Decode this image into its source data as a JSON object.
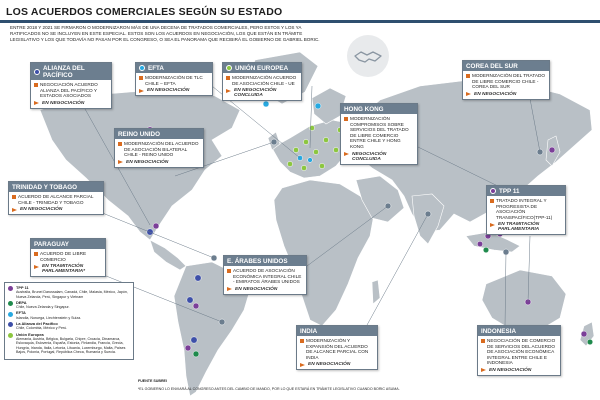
{
  "title": "LOS ACUERDOS COMERCIALES SEGÚN SU ESTADO",
  "intro": "ENTRE 2018 Y 2021 SE FIRMARON O MODERNIZARON MÁS DE UNA DECENA DE TRATADOS COMERCIALES, PERO ESTOS Y LOS YA RATIFICADOS NO SE INCLUYEN EN ESTE ESPECIAL. ESTOS SON LOS ACUERDOS EN NEGOCIACIÓN, LOS QUE ESTÁN EN TRÁMITE LEGISLATIVO Y LOS QUE TODAVÍA NO PASAN POR EL CONGRESO, O SEA EL PANORAMA QUE RECIBIRÁ EL GOBIERNO DE GABRIEL BORIC.",
  "colors": {
    "header": "#6c7e8f",
    "accent": "#d96b1f",
    "land": "#b9c0c6",
    "sea": "#ffffff",
    "rule": "#2f4f6f"
  },
  "boxes": {
    "alianza": {
      "name": "ALIANZA DEL PACÍFICO",
      "dot": "#3d4fa8",
      "text": "NEGOCIACIÓN ACUERDO ALIANZA DEL PACÍFICO Y ESTADOS ASOCIADOS",
      "status": "EN NEGOCIACIÓN"
    },
    "efta": {
      "name": "EFTA",
      "dot": "#27a9e1",
      "text": "MODERNIZACIÓN DE TLC CHILE – EFTA",
      "status": "EN NEGOCIACIÓN"
    },
    "ue": {
      "name": "UNIÓN EUROPEA",
      "dot": "#8cc63f",
      "text": "MODERNIZACIÓN ACUERDO DE ASOCIACIÓN CHILE - UE",
      "status": "EN NEGOCIACIÓN CONCLUIDA"
    },
    "corea": {
      "name": "COREA DEL SUR",
      "text": "MODERNIZACIÓN DEL TRATADO DE LIBRE COMERCIO CHILE - COREA DEL SUR",
      "status": "EN NEGOCIACIÓN"
    },
    "hongkong": {
      "name": "HONG KONG",
      "text": "MODERNIZACIÓN COMPROMISOS SOBRE SERVICIOS DEL TRATADO DE LIBRE COMERCIO ENTRE CHILE Y HONG KONG",
      "status": "NEGOCIACIÓN CONCLUIDA"
    },
    "reino": {
      "name": "REINO UNIDO",
      "text": "MODERNIZACIÓN DEL ACUERDO DE ASOCIACIÓN BILATERAL CHILE - REINO UNIDO",
      "status": "EN NEGOCIACIÓN"
    },
    "trinidad": {
      "name": "TRINIDAD Y TOBAGO",
      "text": "ACUERDO DE ALCANCE PARCIAL CHILE - TRINIDAD Y TOBAGO",
      "status": "EN NEGOCIACIÓN"
    },
    "tpp": {
      "name": "TPP 11",
      "dot": "#7b3f98",
      "text": "TRATADO INTEGRAL Y PROGRESISTA DE ASOCIACIÓN TRANSPACÍFICO(TPP-11)",
      "status": "EN TRAMITACIÓN PARLAMENTARIA"
    },
    "paraguay": {
      "name": "PARAGUAY",
      "text": "ACUERDO DE LIBRE COMERCIO",
      "status": "EN TRAMITACIÓN PARLAMENTARIA*"
    },
    "emiratos": {
      "name": "E. ÁRABES UNIDOS",
      "text": "ACUERDO DE ASOCIACIÓN ECONÓMICA INTEGRAL CHILE - EMIRATOS ÁRABES UNIDOS",
      "status": "EN NEGOCIACIÓN"
    },
    "india": {
      "name": "INDIA",
      "text": "MODERNIZACIÓN Y EXPANSIÓN DEL ACUERDO DE ALCANCE PARCIAL CON INDIA",
      "status": "EN NEGOCIACIÓN"
    },
    "indonesia": {
      "name": "INDONESIA",
      "text": "NEGOCIACIÓN DE COMERCIO DE SERVICIOS DEL ACUERDO DE ASOCIACIÓN ECONÓMICA INTEGRAL ENTRE CHILE E INDONESIA",
      "status": "EN NEGOCIACIÓN"
    }
  },
  "legend": [
    {
      "title": "TPP 11",
      "text": "Australia, Brunei Darussalam, Canadá, Chile, Malasia, México, Japón, Nueva Zelanda, Perú, Singapur y Vietnam",
      "color": "#7b3f98"
    },
    {
      "title": "DEPA",
      "text": "Chile, Nueva Zelanda y Singapur.",
      "color": "#1f8a4c"
    },
    {
      "title": "EFTA",
      "text": "Islandia, Noruega, Liechtenstein y Suiza.",
      "color": "#27a9e1"
    },
    {
      "title": "La Alianza del Pacífico",
      "text": "Chile, Colombia, México y Perú.",
      "color": "#3d4fa8"
    },
    {
      "title": "Unión Europea",
      "text": "Alemania, Austria, Bélgica, Bulgaria, Chipre, Croacia, Dinamarca, Eslovaquia, Eslovenia, España, Estonia, Finlandia, Francia, Grecia, Hungría, Irlanda, Italia, Letonia, Lituania, Luxemburgo, Malta, Países Bajos, Polonia, Portugal, República Checa, Rumania y Suecia.",
      "color": "#8cc63f"
    }
  ],
  "source": "FUENTE SUBREI",
  "note": "*EL GOBIERNO LO ENVIARÁ AL CONGRESO ANTES DEL CAMBIO DE MANDO, POR LO QUE ESTARÁ EN TRÁMITE LEGISLATIVO CUANDO BORIC ASUMA."
}
